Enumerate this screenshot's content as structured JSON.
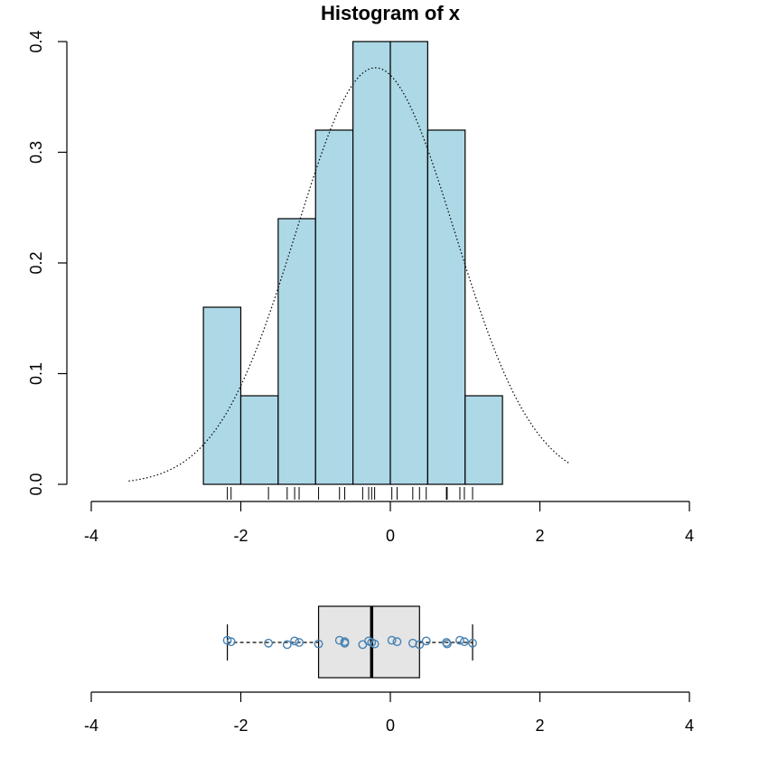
{
  "chart_data": [
    {
      "type": "histogram",
      "title": "Histogram of x",
      "xlabel": "",
      "ylabel": "",
      "xlim": [
        -4,
        4
      ],
      "ylim": [
        0,
        0.4
      ],
      "x_ticks": [
        "-4",
        "-2",
        "0",
        "2",
        "4"
      ],
      "y_ticks": [
        "0.0",
        "0.1",
        "0.2",
        "0.3",
        "0.4"
      ],
      "bins": [
        {
          "from": -2.5,
          "to": -2.0,
          "density": 0.16
        },
        {
          "from": -2.0,
          "to": -1.5,
          "density": 0.08
        },
        {
          "from": -1.5,
          "to": -1.0,
          "density": 0.24
        },
        {
          "from": -1.0,
          "to": -0.5,
          "density": 0.32
        },
        {
          "from": -0.5,
          "to": 0.0,
          "density": 0.4
        },
        {
          "from": 0.0,
          "to": 0.5,
          "density": 0.4
        },
        {
          "from": 0.5,
          "to": 1.0,
          "density": 0.32
        },
        {
          "from": 1.0,
          "to": 1.5,
          "density": 0.08
        }
      ],
      "bar_color": "#add8e6",
      "density_curve": {
        "style": "dotted",
        "mean": -0.2,
        "sd": 1.06,
        "from": -3.5,
        "to": 2.4
      },
      "rug": [
        -2.18,
        -2.13,
        -1.63,
        -1.38,
        -1.28,
        -1.22,
        -0.96,
        -0.68,
        -0.61,
        -0.37,
        -0.29,
        -0.25,
        -0.21,
        0.02,
        0.09,
        0.3,
        0.39,
        0.48,
        0.75,
        0.76,
        0.93,
        0.99,
        1.1
      ]
    },
    {
      "type": "boxplot",
      "xlim": [
        -4,
        4
      ],
      "x_ticks": [
        "-4",
        "-2",
        "0",
        "2",
        "4"
      ],
      "whisker_low": -2.18,
      "q1": -0.96,
      "median": -0.25,
      "q3": 0.39,
      "whisker_high": 1.1,
      "box_color": "#e5e5e5",
      "points": [
        -2.18,
        -2.13,
        -1.63,
        -1.38,
        -1.28,
        -1.22,
        -0.96,
        -0.68,
        -0.61,
        -0.61,
        -0.37,
        -0.29,
        -0.25,
        -0.21,
        0.02,
        0.09,
        0.3,
        0.39,
        0.48,
        0.75,
        0.76,
        0.93,
        0.99,
        1.1
      ],
      "point_color": "#4682b4"
    }
  ]
}
